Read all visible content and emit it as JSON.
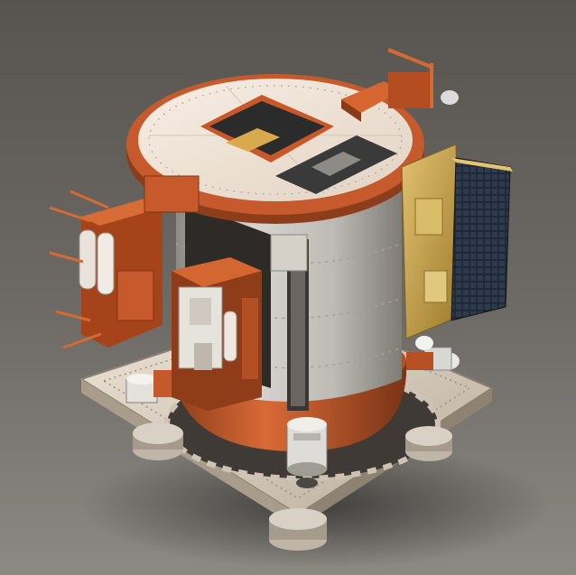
{
  "scene": {
    "subject": "satellite-module",
    "palette": {
      "background_top": "#5a5752",
      "background_bottom": "#8a8781",
      "copper": "#c2562b",
      "copper_dark": "#7a3417",
      "top_plate": "#efe3d6",
      "cylinder": "#c9c6c1",
      "gold_panel": "#c9a44a",
      "solar_cell": "#1f2a38",
      "base_plate": "#ddd3c4",
      "chip_dark": "#2b2b2b"
    }
  }
}
